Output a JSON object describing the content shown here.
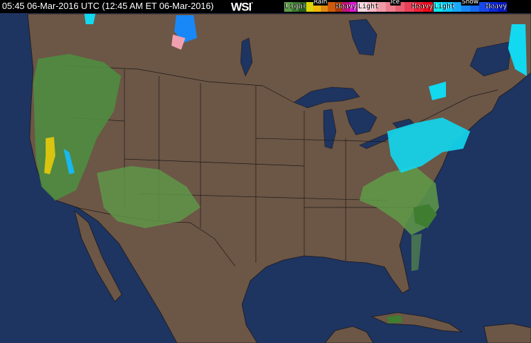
{
  "header": {
    "timestamp": "05:45 06-Mar-2016 UTC  (12:45 AM ET 06-Mar-2016)",
    "logo": "WSI",
    "logo_mark": "°"
  },
  "legend": [
    {
      "title": "Rain",
      "light": "Light",
      "heavy": "Heavy",
      "colors": [
        "#5d9b4a",
        "#3f7d30",
        "#2a5e1f",
        "#d9d60a",
        "#f2b90a",
        "#e08a14",
        "#cf5a0c",
        "#a83a0a",
        "#c0147c",
        "#e016d8"
      ]
    },
    {
      "title": "Ice",
      "light": "Light",
      "heavy": "Heavy",
      "colors": [
        "#f8d8e0",
        "#f4b8c4",
        "#f09aa8",
        "#ec7c8c",
        "#e85e70",
        "#e84058",
        "#ec2238",
        "#f00a1c"
      ]
    },
    {
      "title": "Snow",
      "light": "Light",
      "heavy": "Heavy",
      "colors": [
        "#10e8f0",
        "#10c8f8",
        "#18a8f8",
        "#1888f8",
        "#1868f0",
        "#1848e8",
        "#1028d8",
        "#0818c0"
      ]
    }
  ],
  "map": {
    "ocean_color": "#1e3461",
    "land_color": "#6c5646",
    "border_color": "#1a1a1a"
  }
}
